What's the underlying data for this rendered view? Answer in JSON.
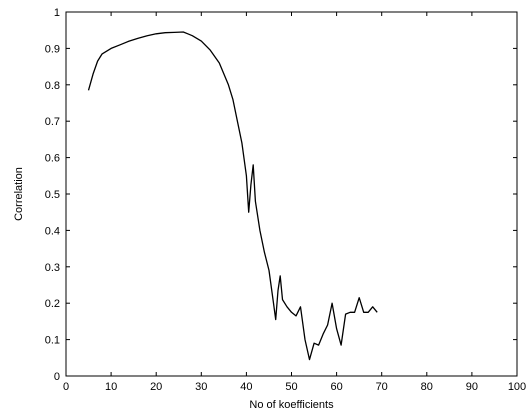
{
  "chart_data": {
    "type": "line",
    "title": "",
    "xlabel": "No of koefficients",
    "ylabel": "Correlation",
    "xlim": [
      0,
      100
    ],
    "ylim": [
      0,
      1
    ],
    "xticks": [
      0,
      10,
      20,
      30,
      40,
      50,
      60,
      70,
      80,
      90,
      100
    ],
    "yticks": [
      0,
      0.1,
      0.2,
      0.3,
      0.4,
      0.5,
      0.6,
      0.7,
      0.8,
      0.9,
      1
    ],
    "x_tick_labels": [
      "0",
      "10",
      "20",
      "30",
      "40",
      "50",
      "60",
      "70",
      "80",
      "90",
      "100"
    ],
    "y_tick_labels": [
      "0",
      "0.1",
      "0.2",
      "0.3",
      "0.4",
      "0.5",
      "0.6",
      "0.7",
      "0.8",
      "0.9",
      "1"
    ],
    "grid": false,
    "line_color": "#000000",
    "series": [
      {
        "x": [
          5,
          6,
          7,
          8,
          10,
          12,
          14,
          16,
          18,
          20,
          22,
          24,
          26,
          27,
          28,
          30,
          32,
          34,
          36,
          37,
          38,
          39,
          40,
          40.5,
          41,
          41.5,
          42,
          43,
          44,
          45,
          46,
          46.5,
          47,
          47.5,
          48,
          49,
          50,
          51,
          52,
          53,
          54,
          55,
          56,
          57,
          58,
          59,
          60,
          61,
          62,
          63,
          64,
          65,
          66,
          67,
          68,
          69
        ],
        "y": [
          0.785,
          0.83,
          0.865,
          0.885,
          0.9,
          0.91,
          0.92,
          0.928,
          0.935,
          0.94,
          0.943,
          0.944,
          0.945,
          0.94,
          0.935,
          0.92,
          0.895,
          0.86,
          0.8,
          0.76,
          0.7,
          0.64,
          0.55,
          0.45,
          0.525,
          0.58,
          0.48,
          0.4,
          0.34,
          0.29,
          0.2,
          0.155,
          0.235,
          0.275,
          0.21,
          0.19,
          0.175,
          0.165,
          0.19,
          0.1,
          0.045,
          0.09,
          0.085,
          0.115,
          0.14,
          0.2,
          0.13,
          0.085,
          0.17,
          0.175,
          0.175,
          0.215,
          0.175,
          0.175,
          0.19,
          0.175
        ]
      }
    ]
  }
}
